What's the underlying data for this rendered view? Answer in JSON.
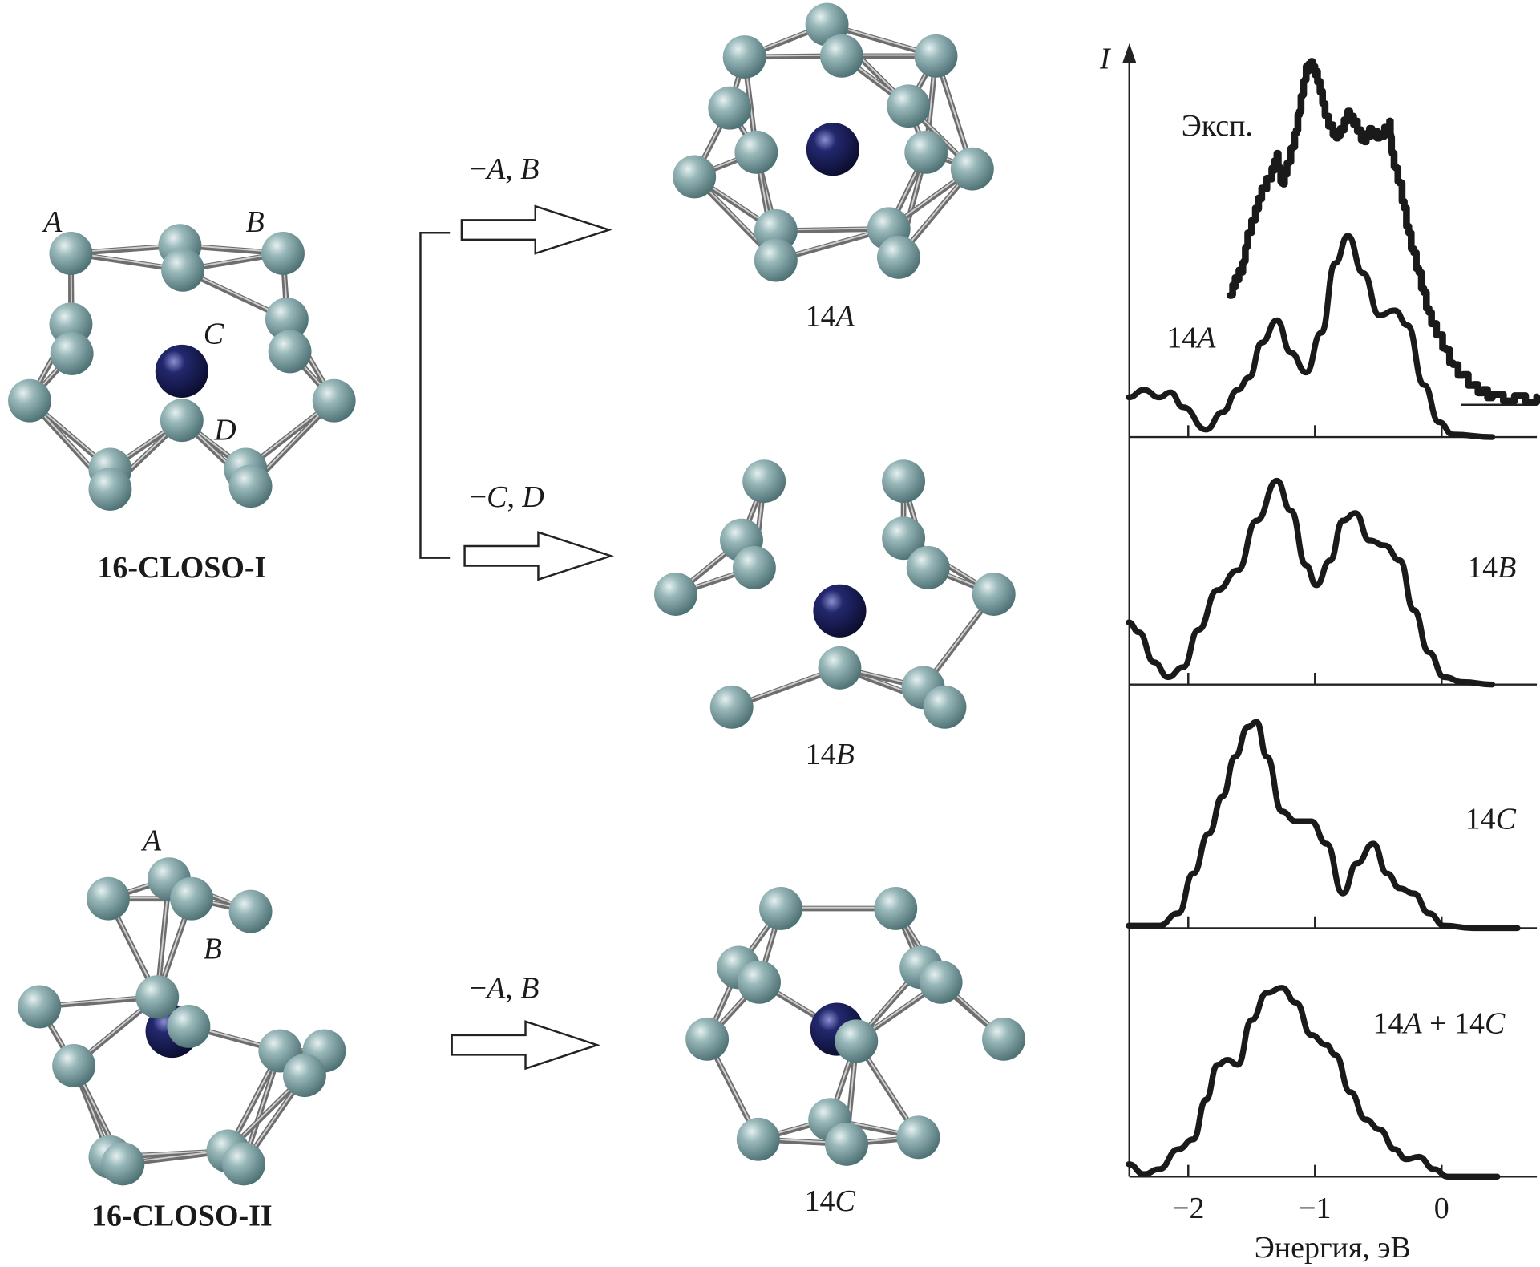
{
  "colors": {
    "cage_atom": "#7fa3a6",
    "central_atom": "#1c1f5a",
    "bond": "#6e6e6e",
    "ink": "#1a1a1a"
  },
  "structures": {
    "closo_I": {
      "title": "16-CLOSO-I",
      "atom_labels": [
        "A",
        "B",
        "C",
        "D"
      ]
    },
    "closo_II": {
      "title": "16-CLOSO-II",
      "atom_labels": [
        "A",
        "B"
      ]
    },
    "s14A": {
      "num": "14",
      "letter": "A"
    },
    "s14B": {
      "num": "14",
      "letter": "B"
    },
    "s14C": {
      "num": "14",
      "letter": "C"
    }
  },
  "reactions": [
    {
      "minus": "−",
      "l1": "A",
      "sep": ", ",
      "l2": "B"
    },
    {
      "minus": "−",
      "l1": "C",
      "sep": ", ",
      "l2": "D"
    },
    {
      "minus": "−",
      "l1": "A",
      "sep": ", ",
      "l2": "B"
    }
  ],
  "chart_data": {
    "type": "line",
    "ylabel": "I",
    "xlabel": "Энергия, эВ",
    "xticks": [
      "−2",
      "−1",
      "0"
    ],
    "xtick_values": [
      -2,
      -1,
      0
    ],
    "xlim": [
      -2.47,
      0.76
    ],
    "stacked_panels": true,
    "panels": [
      {
        "label_num": "14",
        "label_letter": "A",
        "series": [
          {
            "name": "Эксп.",
            "style": "noisy-thick",
            "x": [
              -1.67,
              -1.63,
              -1.57,
              -1.53,
              -1.47,
              -1.42,
              -1.34,
              -1.3,
              -1.26,
              -1.22,
              -1.16,
              -1.11,
              -1.07,
              -1.03,
              -0.99,
              -0.95,
              -0.91,
              -0.84,
              -0.8,
              -0.74,
              -0.68,
              -0.62,
              -0.57,
              -0.49,
              -0.41,
              -0.39,
              -0.33,
              -0.26,
              -0.18,
              -0.1,
              -0.02,
              0.09,
              0.25,
              0.4,
              0.75
            ],
            "y": [
              0.57,
              0.63,
              0.69,
              0.81,
              0.91,
              0.99,
              1.07,
              1.13,
              1.01,
              1.09,
              1.21,
              1.36,
              1.48,
              1.5,
              1.46,
              1.38,
              1.28,
              1.21,
              1.23,
              1.3,
              1.26,
              1.19,
              1.23,
              1.21,
              1.26,
              1.13,
              1.01,
              0.81,
              0.65,
              0.49,
              0.4,
              0.28,
              0.2,
              0.16,
              0.15
            ],
            "baseline_level": 0.13
          },
          {
            "name": "14A",
            "x": [
              -2.47,
              -2.35,
              -2.23,
              -2.14,
              -2.04,
              -1.86,
              -1.73,
              -1.61,
              -1.52,
              -1.42,
              -1.3,
              -1.19,
              -1.07,
              -0.95,
              -0.84,
              -0.74,
              -0.62,
              -0.49,
              -0.37,
              -0.27,
              -0.14,
              -0.02,
              0.09,
              0.4
            ],
            "y": [
              0.16,
              0.19,
              0.16,
              0.18,
              0.12,
              0.03,
              0.1,
              0.19,
              0.24,
              0.38,
              0.47,
              0.34,
              0.26,
              0.42,
              0.7,
              0.81,
              0.66,
              0.49,
              0.51,
              0.45,
              0.21,
              0.06,
              0.01,
              0.0
            ]
          }
        ]
      },
      {
        "label_num": "14",
        "label_letter": "B",
        "series": [
          {
            "name": "14B",
            "x": [
              -2.47,
              -2.39,
              -2.27,
              -2.16,
              -2.04,
              -1.92,
              -1.77,
              -1.61,
              -1.46,
              -1.3,
              -1.19,
              -1.07,
              -0.99,
              -0.88,
              -0.78,
              -0.68,
              -0.57,
              -0.45,
              -0.33,
              -0.22,
              -0.1,
              0.02,
              0.17,
              0.4
            ],
            "y": [
              0.25,
              0.21,
              0.09,
              0.03,
              0.07,
              0.22,
              0.38,
              0.46,
              0.66,
              0.82,
              0.7,
              0.48,
              0.4,
              0.5,
              0.66,
              0.69,
              0.58,
              0.56,
              0.5,
              0.3,
              0.13,
              0.03,
              0.01,
              0.0
            ]
          }
        ]
      },
      {
        "label_num": "14",
        "label_letter": "C",
        "series": [
          {
            "name": "14C",
            "x": [
              -2.47,
              -2.23,
              -2.08,
              -1.96,
              -1.84,
              -1.73,
              -1.63,
              -1.53,
              -1.46,
              -1.38,
              -1.26,
              -1.15,
              -1.03,
              -0.91,
              -0.78,
              -0.67,
              -0.54,
              -0.43,
              -0.33,
              -0.22,
              -0.1,
              0.02,
              0.25,
              0.6
            ],
            "y": [
              0.01,
              0.01,
              0.06,
              0.22,
              0.38,
              0.53,
              0.69,
              0.81,
              0.83,
              0.69,
              0.47,
              0.43,
              0.43,
              0.34,
              0.14,
              0.26,
              0.34,
              0.22,
              0.16,
              0.14,
              0.06,
              0.01,
              0.0,
              0.0
            ]
          }
        ]
      },
      {
        "label_num": "14",
        "label_letter": "A",
        "label_plus": " + ",
        "label_num2": "14",
        "label_letter2": "C",
        "series": [
          {
            "name": "14A + 14C",
            "x": [
              -2.47,
              -2.35,
              -2.23,
              -2.08,
              -1.96,
              -1.86,
              -1.77,
              -1.69,
              -1.61,
              -1.5,
              -1.38,
              -1.26,
              -1.15,
              -1.03,
              -0.91,
              -0.84,
              -0.72,
              -0.6,
              -0.49,
              -0.37,
              -0.28,
              -0.18,
              -0.06,
              0.05,
              0.44
            ],
            "y": [
              0.05,
              0.01,
              0.03,
              0.11,
              0.15,
              0.31,
              0.45,
              0.47,
              0.45,
              0.63,
              0.74,
              0.76,
              0.7,
              0.57,
              0.53,
              0.49,
              0.34,
              0.23,
              0.19,
              0.11,
              0.07,
              0.08,
              0.03,
              0.0,
              0.0
            ]
          }
        ]
      }
    ]
  }
}
